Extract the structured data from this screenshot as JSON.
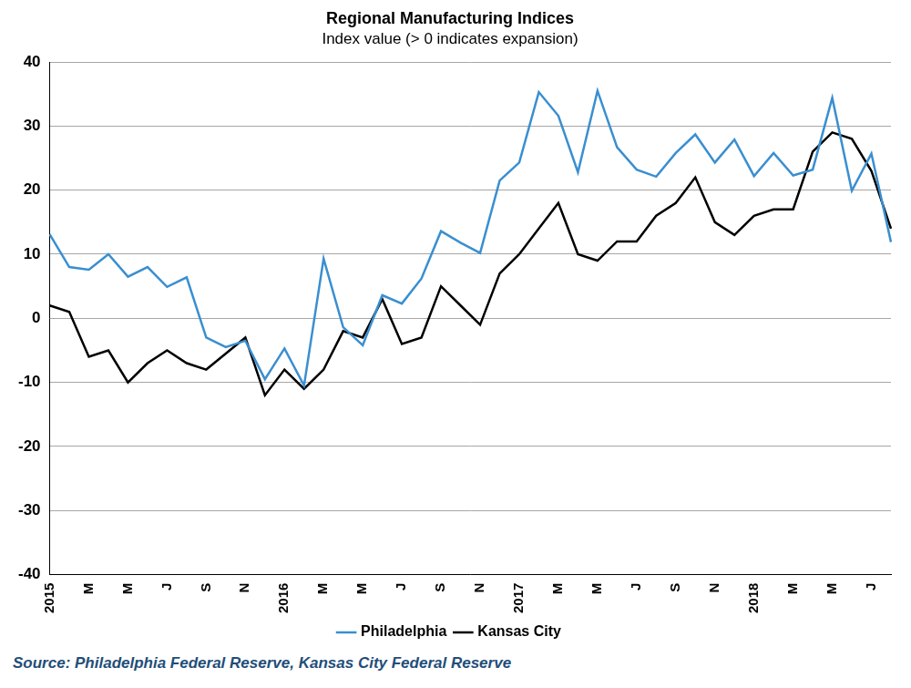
{
  "chart_data": {
    "type": "line",
    "title": "Regional Manufacturing Indices",
    "subtitle": "Index value (> 0 indicates expansion)",
    "source": "Source: Philadelphia Federal Reserve, Kansas City Federal Reserve",
    "categories": [
      "2015",
      null,
      "M",
      null,
      "M",
      null,
      "J",
      null,
      "S",
      null,
      "N",
      null,
      "2016",
      null,
      "M",
      null,
      "M",
      null,
      "J",
      null,
      "S",
      null,
      "N",
      null,
      "2017",
      null,
      "M",
      null,
      "M",
      null,
      "J",
      null,
      "S",
      null,
      "N",
      null,
      "2018",
      null,
      "M",
      null,
      "M",
      null,
      "J",
      null
    ],
    "series": [
      {
        "name": "Philadelphia",
        "color": "#3a8fd0",
        "values": [
          13.1,
          8,
          7.6,
          10,
          6.5,
          8,
          4.9,
          6.4,
          -3,
          -4.5,
          -3.5,
          -9.5,
          -4.7,
          -10.5,
          9.3,
          -1.4,
          -4.2,
          3.6,
          2.3,
          6.2,
          13.6,
          11.8,
          10.2,
          21.5,
          24.3,
          35.3,
          31.6,
          22.8,
          35.5,
          26.7,
          23.2,
          22.1,
          25.8,
          28.7,
          24.3,
          27.9,
          22.2,
          25.8,
          22.3,
          23.2,
          34.4,
          19.9,
          25.7,
          11.9
        ]
      },
      {
        "name": "Kansas City",
        "color": "#000000",
        "values": [
          2,
          1,
          -6,
          -5,
          -10,
          -7,
          -5,
          -7,
          -8,
          -5.5,
          -3,
          -12,
          -8,
          -11,
          -8,
          -2,
          -3,
          3,
          -4,
          -3,
          5,
          2,
          -1,
          7,
          10,
          14,
          18,
          10,
          9,
          12,
          12,
          16,
          18,
          22,
          15,
          13,
          16,
          17,
          17,
          26,
          29,
          28,
          23,
          14
        ]
      }
    ],
    "ylim": [
      -40,
      40
    ],
    "yticks": [
      -40,
      -30,
      -20,
      -10,
      0,
      10,
      20,
      30,
      40
    ],
    "grid": true,
    "legend": "bottom"
  }
}
